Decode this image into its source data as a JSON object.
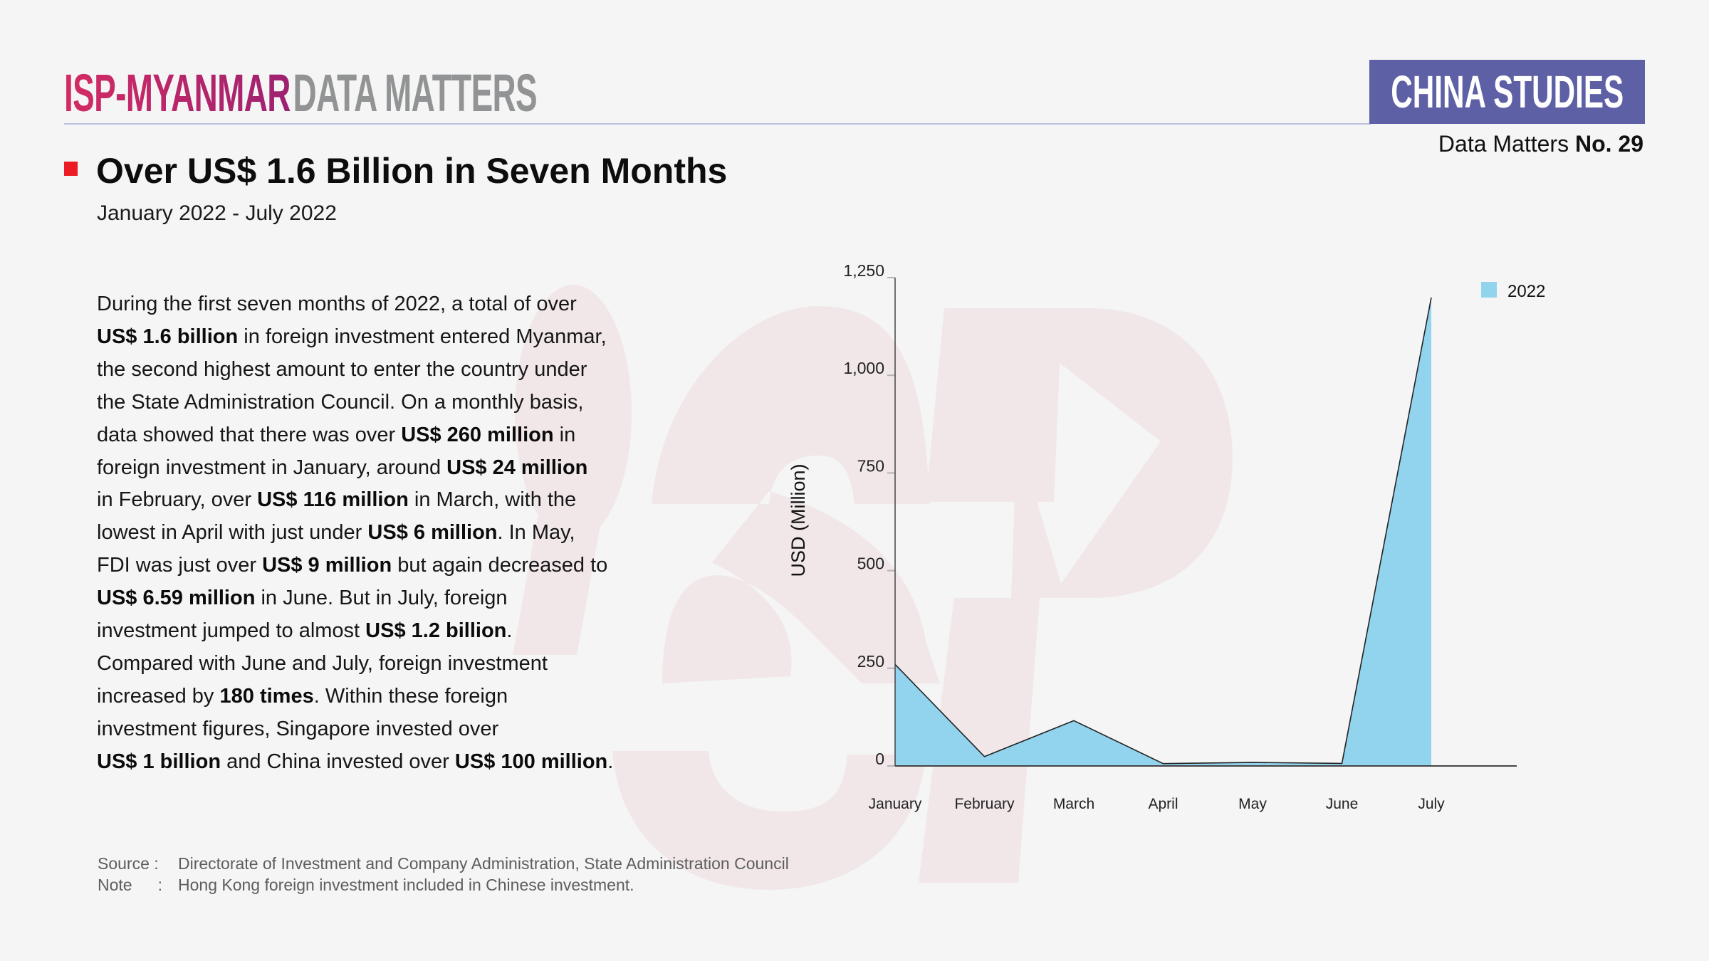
{
  "header": {
    "logo_primary": "ISP-MYANMAR",
    "logo_secondary": "DATA MATTERS",
    "series_badge": "CHINA STUDIES",
    "issue_prefix": "Data Matters",
    "issue_number": "No. 29",
    "colors": {
      "logo_start": "#d42b64",
      "logo_end": "#9d2171",
      "badge": "#5e60a6",
      "bullet": "#ec1c24"
    }
  },
  "title": "Over US$ 1.6 Billion in Seven Months",
  "subtitle": "January 2022 - July 2022",
  "body_lines": [
    [
      {
        "t": "During the first seven months of 2022, a total of over"
      }
    ],
    [
      {
        "t": "US$ 1.6 billion",
        "b": true
      },
      {
        "t": " in foreign investment entered Myanmar,"
      }
    ],
    [
      {
        "t": "the second highest amount to enter the country under"
      }
    ],
    [
      {
        "t": "the State Administration Council. On a monthly basis,"
      }
    ],
    [
      {
        "t": "data showed that there was over "
      },
      {
        "t": "US$ 260 million",
        "b": true
      },
      {
        "t": " in"
      }
    ],
    [
      {
        "t": "foreign investment in January, around "
      },
      {
        "t": "US$ 24 million",
        "b": true
      }
    ],
    [
      {
        "t": "in February, over "
      },
      {
        "t": "US$ 116 million",
        "b": true
      },
      {
        "t": " in March, with the"
      }
    ],
    [
      {
        "t": "lowest in April with just under "
      },
      {
        "t": "US$ 6 million",
        "b": true
      },
      {
        "t": ". In May,"
      }
    ],
    [
      {
        "t": "FDI was just over "
      },
      {
        "t": "US$ 9 million",
        "b": true
      },
      {
        "t": " but again decreased to"
      }
    ],
    [
      {
        "t": "US$ 6.59 million",
        "b": true
      },
      {
        "t": " in June. But in July, foreign"
      }
    ],
    [
      {
        "t": "investment jumped to almost "
      },
      {
        "t": "US$ 1.2 billion",
        "b": true
      },
      {
        "t": "."
      }
    ],
    [
      {
        "t": "Compared with June and July, foreign investment"
      }
    ],
    [
      {
        "t": "increased by "
      },
      {
        "t": "180 times",
        "b": true
      },
      {
        "t": ". Within these foreign"
      }
    ],
    [
      {
        "t": "investment figures, Singapore invested over"
      }
    ],
    [
      {
        "t": "US$ 1 billion",
        "b": true
      },
      {
        "t": " and China invested over "
      },
      {
        "t": "US$ 100 million",
        "b": true
      },
      {
        "t": "."
      }
    ]
  ],
  "footer": {
    "source_label": "Source :",
    "source_text": "Directorate of Investment and Company Administration, State Administration Council",
    "note_label": "Note     :",
    "note_text": "Hong Kong foreign investment included in Chinese investment."
  },
  "chart_data": {
    "type": "area",
    "title": "",
    "xlabel": "",
    "ylabel": "USD (Million)",
    "categories": [
      "January",
      "February",
      "March",
      "April",
      "May",
      "June",
      "July"
    ],
    "series": [
      {
        "name": "2022",
        "color": "#92d3ee",
        "values": [
          260,
          24,
          116,
          6,
          9,
          6.59,
          1199
        ]
      }
    ],
    "ylim": [
      0,
      1250
    ],
    "yticks": [
      0,
      250,
      500,
      750,
      1000,
      1250
    ],
    "ytick_labels": [
      "0",
      "250",
      "500",
      "750",
      "1,000",
      "1,250"
    ],
    "grid": false,
    "legend": "top-right"
  }
}
